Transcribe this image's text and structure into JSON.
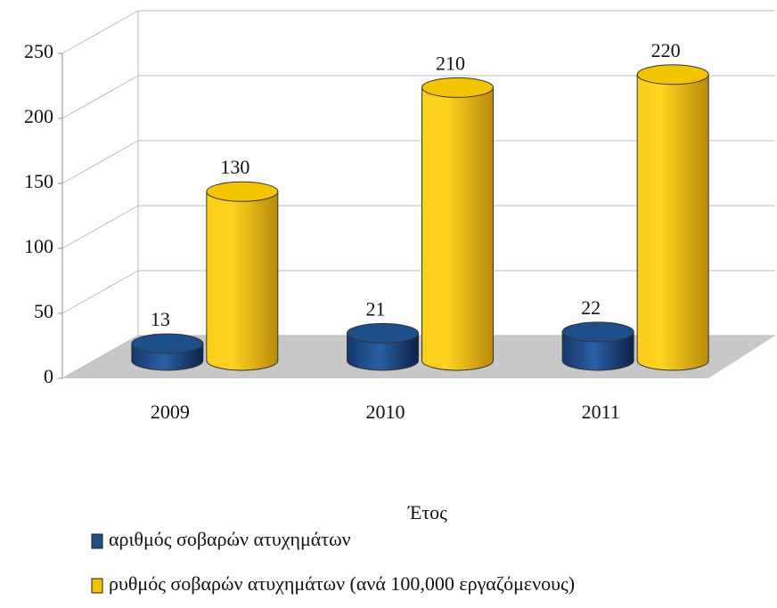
{
  "chart_data": {
    "type": "bar3d-cylinder",
    "x_label": "Έτος",
    "categories": [
      "2009",
      "2010",
      "2011"
    ],
    "series": [
      {
        "name": "αριθμός σοβαρών ατυχημάτων",
        "color": "#1f4e8c",
        "values": [
          13,
          21,
          22
        ]
      },
      {
        "name": "ρυθμός σοβαρών ατυχημάτων (ανά 100,000 εργαζόμενους)",
        "color": "#f5c400",
        "values": [
          130,
          210,
          220
        ]
      }
    ],
    "ylim": [
      0,
      250
    ],
    "yticks": [
      0,
      50,
      100,
      150,
      200,
      250
    ],
    "grid": true,
    "legend": "bottom-left"
  }
}
